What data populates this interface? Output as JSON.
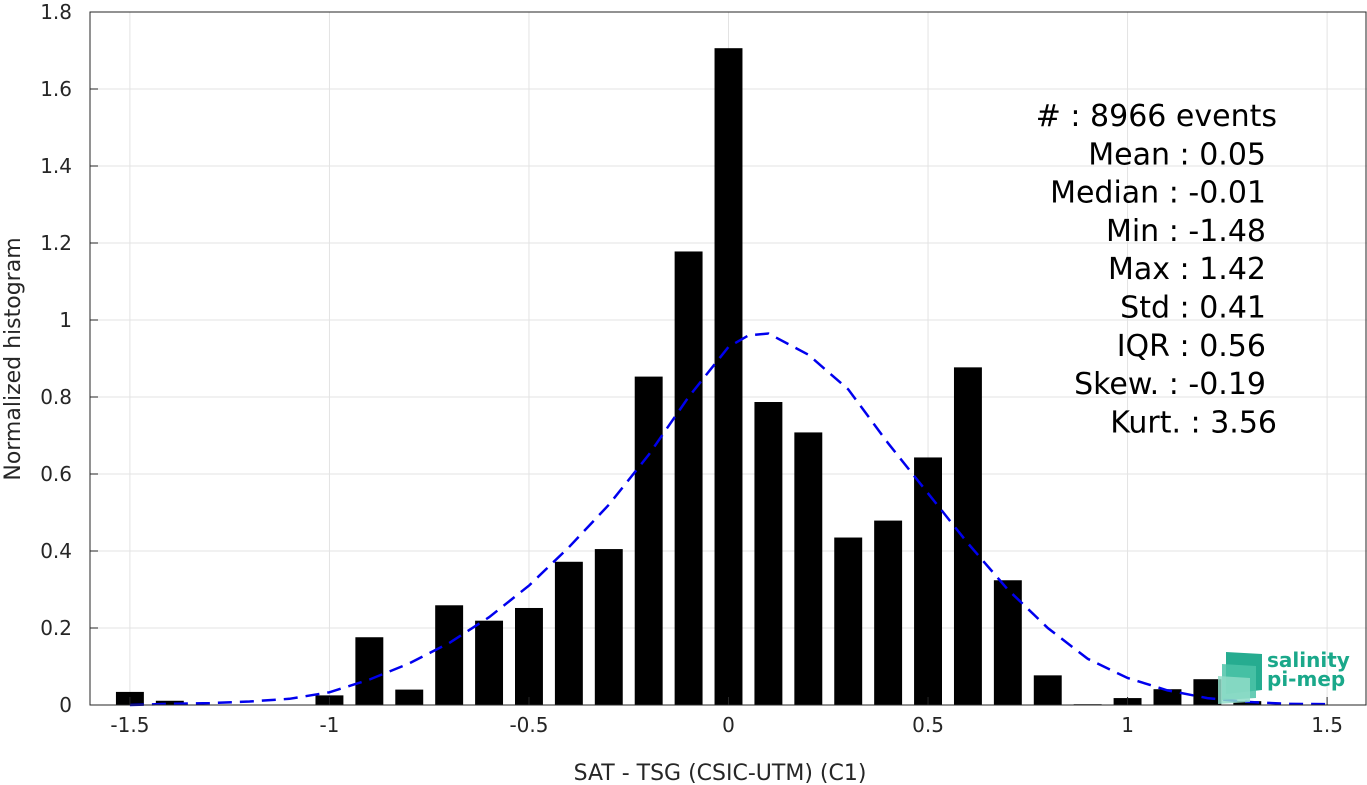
{
  "chart_data": {
    "type": "bar",
    "xlabel": "SAT - TSG (CSIC-UTM) (C1)",
    "ylabel": "Normalized histogram",
    "xlim": [
      -1.6,
      1.6
    ],
    "ylim": [
      0,
      1.8
    ],
    "xticks": [
      "-1.5",
      "-1",
      "-0.5",
      "0",
      "0.5",
      "1",
      "1.5"
    ],
    "xtick_values": [
      -1.5,
      -1,
      -0.5,
      0,
      0.5,
      1,
      1.5
    ],
    "yticks": [
      "0",
      "0.2",
      "0.4",
      "0.6",
      "0.8",
      "1",
      "1.2",
      "1.4",
      "1.6",
      "1.8"
    ],
    "ytick_values": [
      0,
      0.2,
      0.4,
      0.6,
      0.8,
      1,
      1.2,
      1.4,
      1.6,
      1.8
    ],
    "grid": true,
    "bar_color": "#000000",
    "bins": [
      {
        "x": -1.5,
        "y": 0.034
      },
      {
        "x": -1.4,
        "y": 0.011
      },
      {
        "x": -1.3,
        "y": 0.0
      },
      {
        "x": -1.2,
        "y": 0.0
      },
      {
        "x": -1.1,
        "y": 0.0
      },
      {
        "x": -1.0,
        "y": 0.025
      },
      {
        "x": -0.9,
        "y": 0.176
      },
      {
        "x": -0.8,
        "y": 0.04
      },
      {
        "x": -0.7,
        "y": 0.259
      },
      {
        "x": -0.6,
        "y": 0.219
      },
      {
        "x": -0.5,
        "y": 0.252
      },
      {
        "x": -0.4,
        "y": 0.372
      },
      {
        "x": -0.3,
        "y": 0.405
      },
      {
        "x": -0.2,
        "y": 0.853
      },
      {
        "x": -0.1,
        "y": 1.178
      },
      {
        "x": 0.0,
        "y": 1.706
      },
      {
        "x": 0.1,
        "y": 0.787
      },
      {
        "x": 0.2,
        "y": 0.708
      },
      {
        "x": 0.3,
        "y": 0.435
      },
      {
        "x": 0.4,
        "y": 0.479
      },
      {
        "x": 0.5,
        "y": 0.643
      },
      {
        "x": 0.6,
        "y": 0.877
      },
      {
        "x": 0.7,
        "y": 0.324
      },
      {
        "x": 0.8,
        "y": 0.077
      },
      {
        "x": 0.9,
        "y": 0.002
      },
      {
        "x": 1.0,
        "y": 0.018
      },
      {
        "x": 1.1,
        "y": 0.041
      },
      {
        "x": 1.2,
        "y": 0.067
      },
      {
        "x": 1.3,
        "y": 0.01
      }
    ],
    "fit_curve": {
      "style": "dashed",
      "color": "#0000ee",
      "points": [
        [
          -1.5,
          0.0
        ],
        [
          -1.4,
          0.003
        ],
        [
          -1.3,
          0.005
        ],
        [
          -1.2,
          0.009
        ],
        [
          -1.1,
          0.016
        ],
        [
          -1.0,
          0.033
        ],
        [
          -0.9,
          0.066
        ],
        [
          -0.8,
          0.108
        ],
        [
          -0.7,
          0.161
        ],
        [
          -0.6,
          0.228
        ],
        [
          -0.5,
          0.31
        ],
        [
          -0.4,
          0.41
        ],
        [
          -0.3,
          0.52
        ],
        [
          -0.2,
          0.65
        ],
        [
          -0.1,
          0.8
        ],
        [
          0.0,
          0.93
        ],
        [
          0.05,
          0.96
        ],
        [
          0.1,
          0.965
        ],
        [
          0.2,
          0.91
        ],
        [
          0.3,
          0.82
        ],
        [
          0.4,
          0.68
        ],
        [
          0.5,
          0.55
        ],
        [
          0.6,
          0.42
        ],
        [
          0.7,
          0.3
        ],
        [
          0.8,
          0.2
        ],
        [
          0.9,
          0.12
        ],
        [
          1.0,
          0.07
        ],
        [
          1.1,
          0.038
        ],
        [
          1.2,
          0.018
        ],
        [
          1.3,
          0.008
        ],
        [
          1.4,
          0.003
        ],
        [
          1.5,
          0.002
        ]
      ]
    }
  },
  "stats": [
    "#  : 8966 events",
    "Mean : 0.05",
    "Median : -0.01",
    "Min : -1.48",
    "Max : 1.42",
    "Std : 0.41",
    "IQR : 0.56",
    "Skew. : -0.19",
    "Kurt. : 3.56"
  ],
  "logo": {
    "line1": "salinity",
    "line2": "pi-mep",
    "color": "#1aa88a"
  }
}
